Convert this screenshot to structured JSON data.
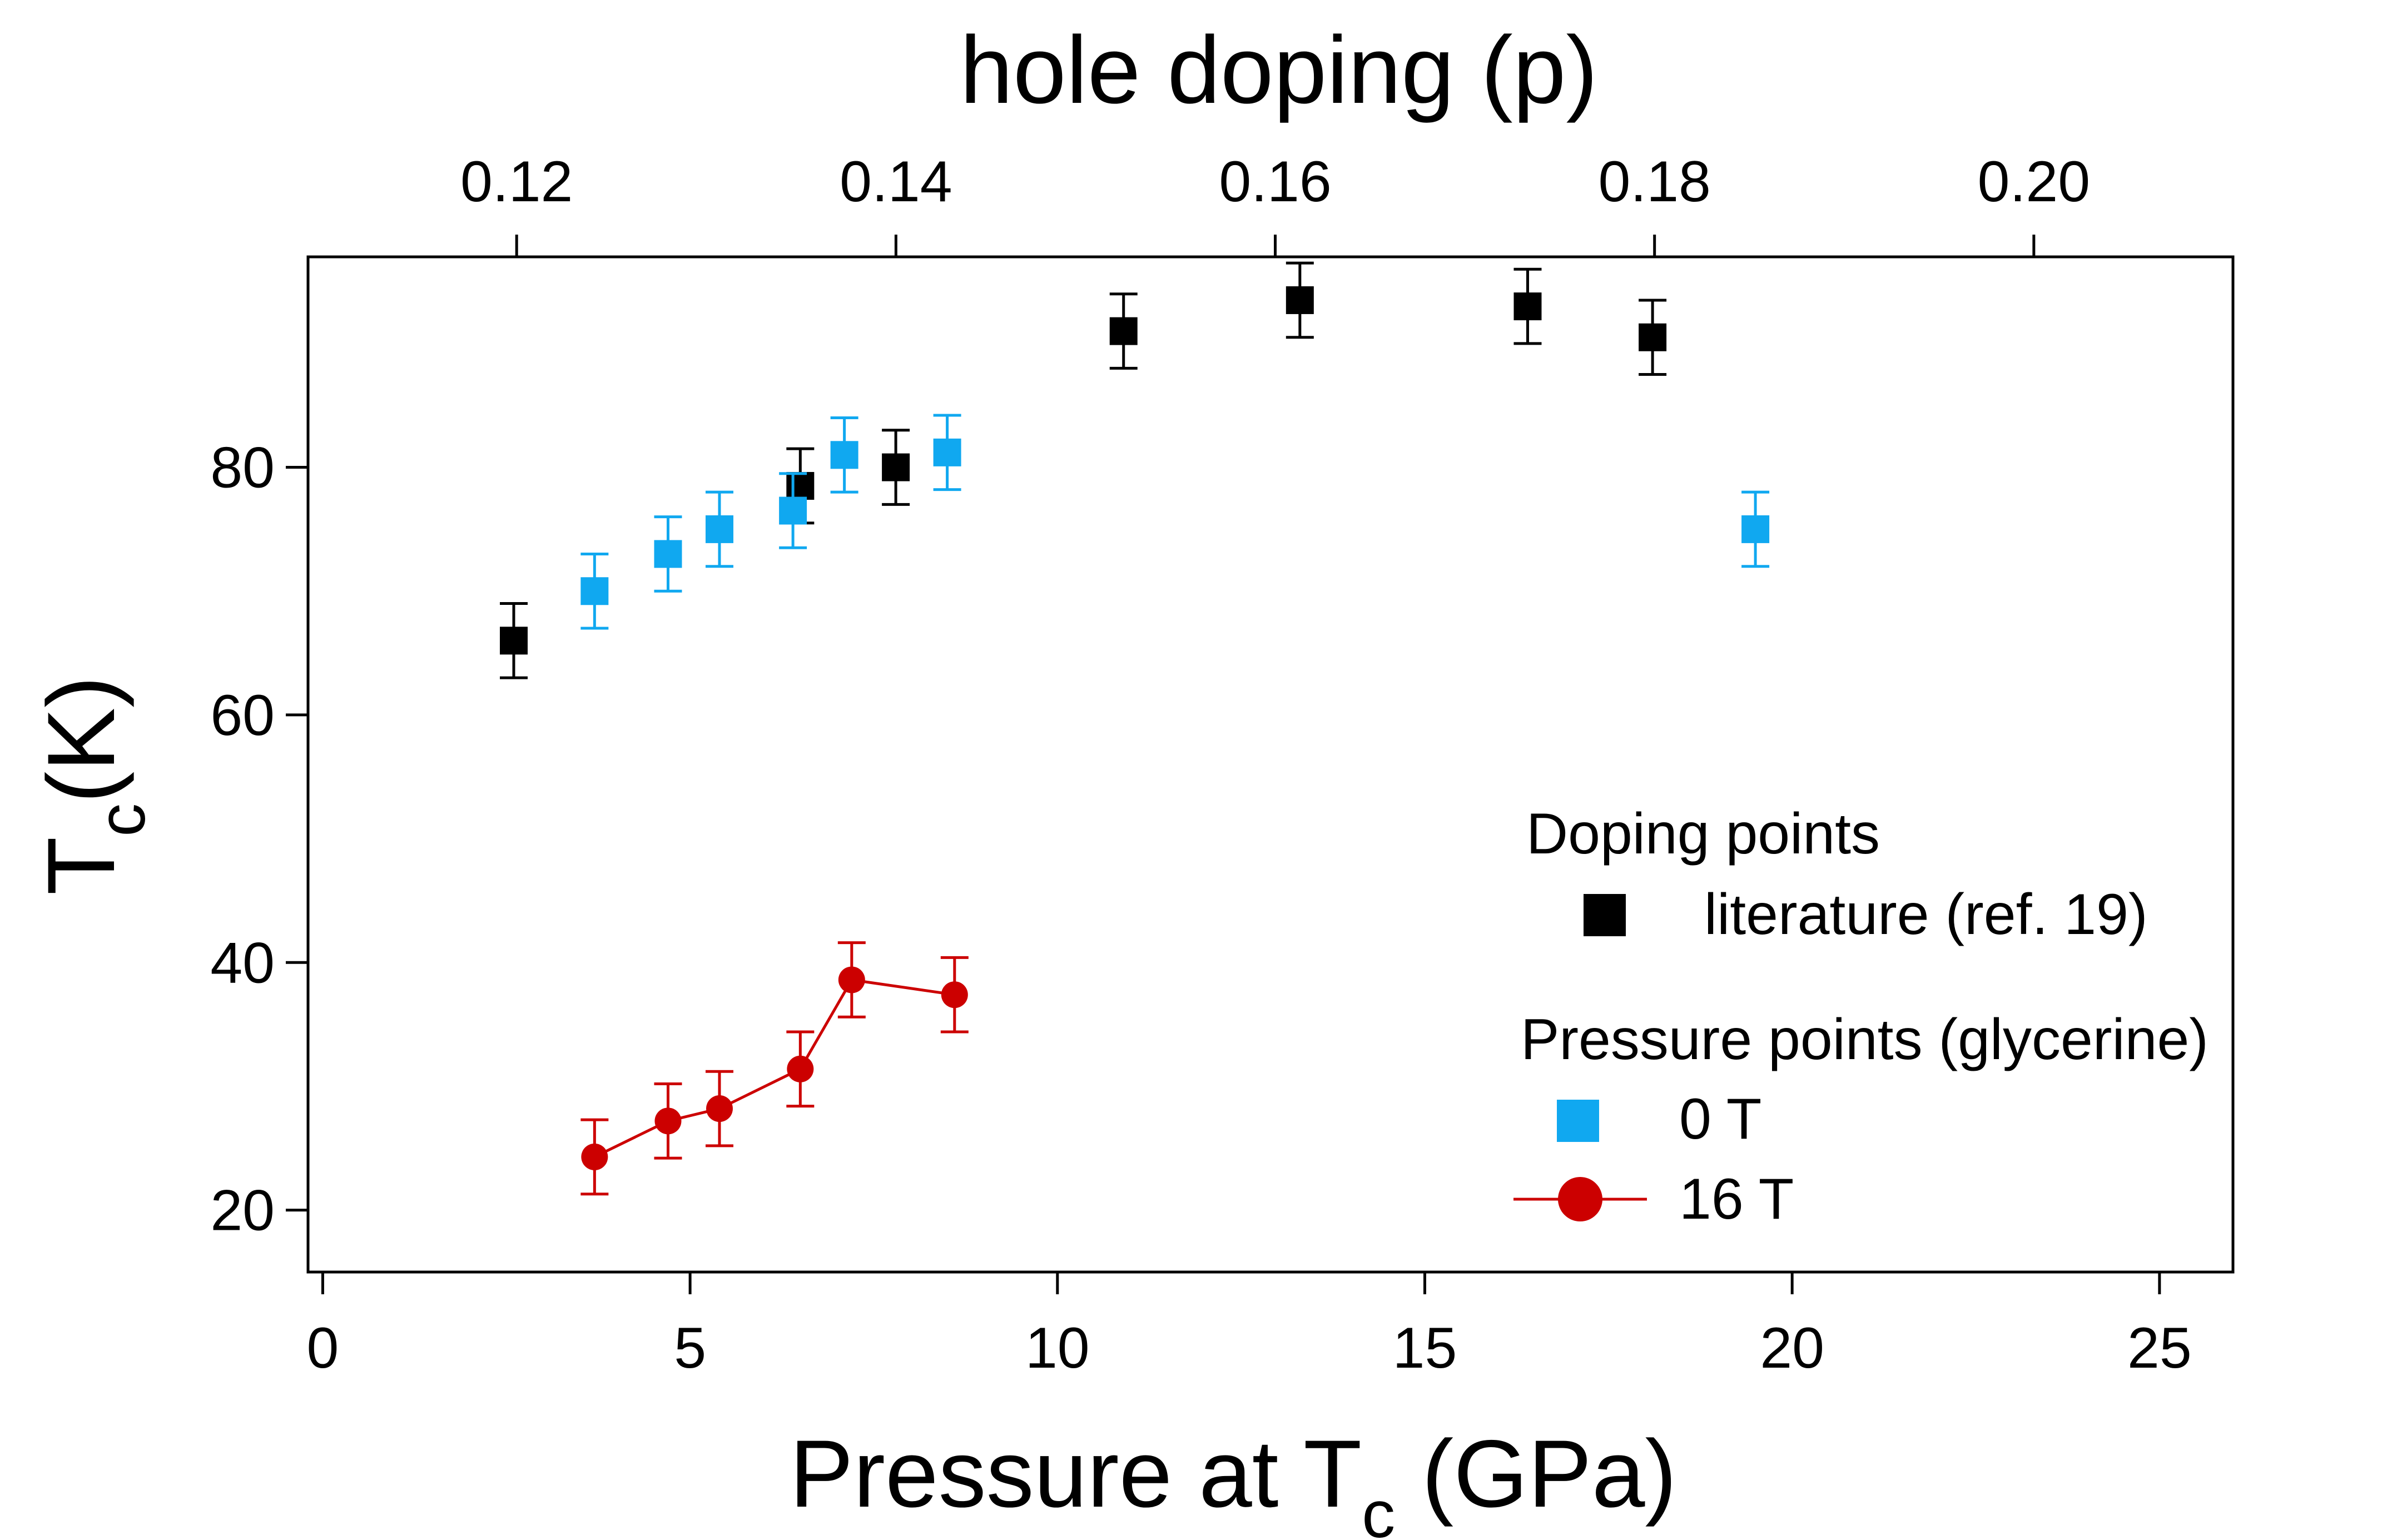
{
  "chart_data": {
    "type": "scatter",
    "title": "",
    "xlabel": {
      "main": "Pressure at T",
      "sub": "c",
      "tail": " (GPa)"
    },
    "ylabel": {
      "main": "T",
      "sub": "c",
      "tail": "(K)"
    },
    "x2label": "hole doping (p)",
    "xlim": [
      -0.2,
      26
    ],
    "ylim": [
      15,
      97
    ],
    "x2lim": [
      0.109,
      0.2105
    ],
    "x_ticks": [
      0,
      5,
      10,
      15,
      20,
      25
    ],
    "x_tick_labels": [
      "0",
      "5",
      "10",
      "15",
      "20",
      "25"
    ],
    "y_ticks": [
      20,
      40,
      60,
      80
    ],
    "y_tick_labels": [
      "20",
      "40",
      "60",
      "80"
    ],
    "x2_ticks": [
      0.12,
      0.14,
      0.16,
      0.18,
      0.2
    ],
    "x2_tick_labels": [
      "0.12",
      "0.14",
      "0.16",
      "0.18",
      "0.20"
    ],
    "grid": false,
    "legend_position": "lower-right",
    "series": [
      {
        "name": "literature (ref. 19)",
        "group": "Doping points",
        "marker": "square",
        "color": "#000000",
        "connected": false,
        "x": [
          2.6,
          6.5,
          7.8,
          10.9,
          13.3,
          16.4,
          18.1
        ],
        "y": [
          66,
          78.5,
          80,
          91,
          93.5,
          93,
          90.5
        ],
        "err": [
          3,
          3,
          3,
          3,
          3,
          3,
          3
        ]
      },
      {
        "name": "0 T",
        "group": "Pressure points (glycerine)",
        "marker": "square",
        "color": "#10a8f0",
        "connected": false,
        "x": [
          3.7,
          4.7,
          5.4,
          6.4,
          7.1,
          8.5,
          19.5
        ],
        "y": [
          70,
          73,
          75,
          76.5,
          81,
          81.2,
          75
        ],
        "err": [
          3,
          3,
          3,
          3,
          3,
          3,
          3
        ]
      },
      {
        "name": "16 T",
        "group": "Pressure points (glycerine)",
        "marker": "circle",
        "color": "#cc0000",
        "connected": true,
        "x": [
          3.7,
          4.7,
          5.4,
          6.5,
          7.2,
          8.6
        ],
        "y": [
          24.3,
          27.2,
          28.2,
          31.4,
          38.6,
          37.4
        ],
        "err": [
          3,
          3,
          3,
          3,
          3,
          3
        ]
      }
    ]
  },
  "legend": {
    "group1_title": "Doping points",
    "group2_title": "Pressure points (glycerine)"
  }
}
